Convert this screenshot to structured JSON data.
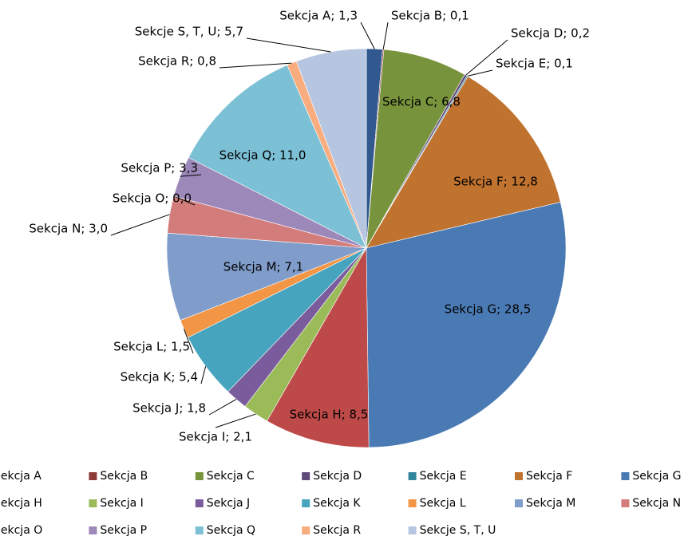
{
  "chart_data": {
    "type": "pie",
    "categories": [
      "Sekcja A",
      "Sekcja B",
      "Sekcja C",
      "Sekcja D",
      "Sekcja E",
      "Sekcja F",
      "Sekcja G",
      "Sekcja H",
      "Sekcja I",
      "Sekcja J",
      "Sekcja K",
      "Sekcja L",
      "Sekcja M",
      "Sekcja N",
      "Sekcja O",
      "Sekcja P",
      "Sekcja Q",
      "Sekcja R",
      "Sekcje S, T, U"
    ],
    "values": [
      1.3,
      0.1,
      6.8,
      0.2,
      0.1,
      12.8,
      28.5,
      8.5,
      2.1,
      1.8,
      5.4,
      1.5,
      7.1,
      3.0,
      0.0,
      3.3,
      11.0,
      0.8,
      5.7
    ],
    "value_labels": [
      "Sekcja A; 1,3",
      "Sekcja B; 0,1",
      "Sekcja C; 6,8",
      "Sekcja D; 0,2",
      "Sekcja E; 0,1",
      "Sekcja F; 12,8",
      "Sekcja G; 28,5",
      "Sekcja H; 8,5",
      "Sekcja I; 2,1",
      "Sekcja J; 1,8",
      "Sekcja K; 5,4",
      "Sekcja L; 1,5",
      "Sekcja M; 7,1",
      "Sekcja N; 3,0",
      "Sekcja O; 0,0",
      "Sekcja P; 3,3",
      "Sekcja Q; 11,0",
      "Sekcja R; 0,8",
      "Sekcje S, T, U; 5,7"
    ],
    "colors": [
      "#31598f",
      "#8e3b39",
      "#77933c",
      "#5f497a",
      "#31859c",
      "#c0722f",
      "#4a7ab4",
      "#bd4a48",
      "#9bbb59",
      "#7a5c9c",
      "#46a4bf",
      "#f29545",
      "#7f9ccb",
      "#d27d7b",
      "#b7cf8a",
      "#9d88ba",
      "#7cc0d6",
      "#f9ad7f",
      "#b6c5e0"
    ],
    "legend": "bottom"
  }
}
